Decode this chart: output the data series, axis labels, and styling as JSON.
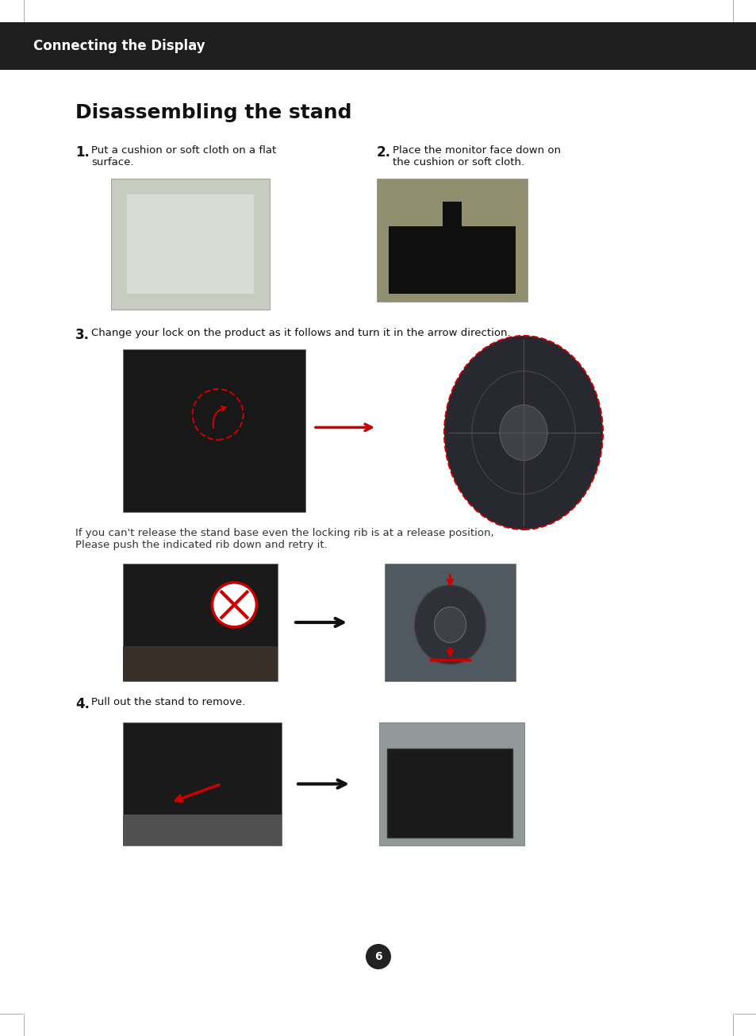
{
  "bg_color": "#ffffff",
  "header_bg": "#1e1e1e",
  "header_text": "Connecting the Display",
  "header_text_color": "#ffffff",
  "header_fontsize": 12,
  "title": "Disassembling the stand",
  "title_fontsize": 18,
  "page_number": "6",
  "step1_num": "1.",
  "step1_text": "Put a cushion or soft cloth on a flat\nsurface.",
  "step2_num": "2.",
  "step2_text": "Place the monitor face down on\nthe cushion or soft cloth.",
  "step3_num": "3.",
  "step3_text": "Change your lock on the product as it follows and turn it in the arrow direction.",
  "step4_num": "4.",
  "step4_text": "Pull out the stand to remove.",
  "note_text": "If you can't release the stand base even the locking rib is at a release position,\nPlease push the indicated rib down and retry it.",
  "arrow_color": "#cc0000",
  "black_arrow_color": "#111111",
  "img1_color": "#c8ccc0",
  "img2_color": "#909070",
  "img3a_color": "#181818",
  "img3b_color": "#282830",
  "img4a_color": "#1a1a1a",
  "img4b_color": "#505860",
  "img5a_color": "#1a1a1a",
  "img5b_color": "#909898"
}
